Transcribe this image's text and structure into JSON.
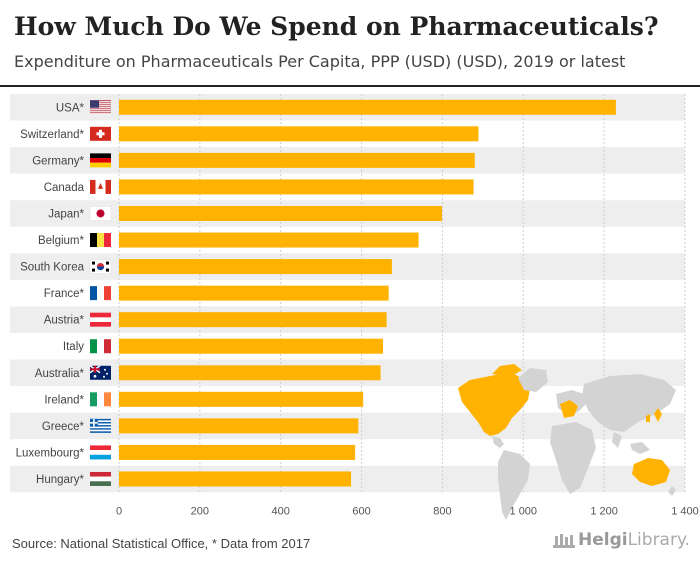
{
  "header": {
    "title": "How Much Do We Spend on Pharmaceuticals?",
    "subtitle": "Expenditure on Pharmaceuticals Per Capita, PPP (USD) (USD), 2019 or latest"
  },
  "footer": {
    "source": "Source: National Statistical Office, * Data from 2017",
    "logo_bold": "Helgi",
    "logo_rest": "Library."
  },
  "colors": {
    "bar": "#FFB300",
    "row_band": "#EEEEEE",
    "map_highlight": "#FFB300",
    "map_base": "#D3D3D3"
  },
  "chart_data": {
    "type": "bar",
    "orientation": "horizontal",
    "categories": [
      "USA*",
      "Switzerland*",
      "Germany*",
      "Canada",
      "Japan*",
      "Belgium*",
      "South Korea",
      "France*",
      "Austria*",
      "Italy",
      "Australia*",
      "Ireland*",
      "Greece*",
      "Luxembourg*",
      "Hungary*"
    ],
    "flags": [
      "us",
      "ch",
      "de",
      "ca",
      "jp",
      "be",
      "kr",
      "fr",
      "at",
      "it",
      "au",
      "ie",
      "gr",
      "lu",
      "hu"
    ],
    "values": [
      1229,
      889,
      880,
      877,
      799,
      741,
      675,
      667,
      662,
      653,
      647,
      604,
      592,
      584,
      574
    ],
    "xlim": [
      0,
      1400
    ],
    "xticks": [
      0,
      200,
      400,
      600,
      800,
      1000,
      1200,
      1400
    ],
    "xtick_labels": [
      "0",
      "200",
      "400",
      "600",
      "800",
      "1 000",
      "1 200",
      "1 400"
    ],
    "grid": true
  }
}
